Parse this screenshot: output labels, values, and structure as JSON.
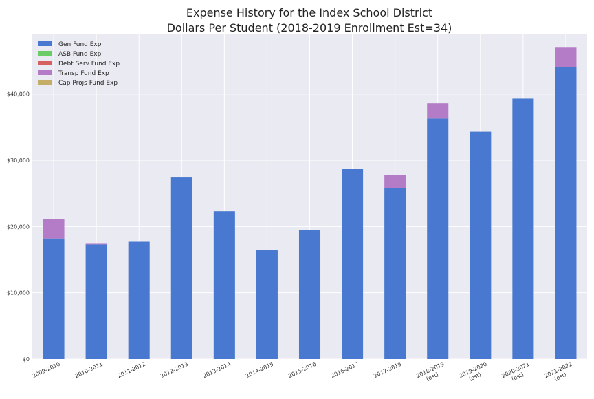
{
  "chart_data": {
    "type": "bar",
    "stacked": true,
    "title": "Expense History for the Index School District",
    "subtitle": "Dollars Per Student (2018-2019 Enrollment Est=34)",
    "xlabel": "",
    "ylabel": "",
    "categories": [
      [
        "2009-2010"
      ],
      [
        "2010-2011"
      ],
      [
        "2011-2012"
      ],
      [
        "2012-2013"
      ],
      [
        "2013-2014"
      ],
      [
        "2014-2015"
      ],
      [
        "2015-2016"
      ],
      [
        "2016-2017"
      ],
      [
        "2017-2018"
      ],
      [
        "2018-2019",
        "(est)"
      ],
      [
        "2019-2020",
        "(est)"
      ],
      [
        "2020-2021",
        "(est)"
      ],
      [
        "2021-2022",
        "(est)"
      ]
    ],
    "ylim": [
      0,
      49000
    ],
    "yticks": [
      0,
      10000,
      20000,
      30000,
      40000
    ],
    "ytick_labels": [
      "$0",
      "$10,000",
      "$20,000",
      "$30,000",
      "$40,000"
    ],
    "grid": true,
    "legend_position": "top-left",
    "series": [
      {
        "name": "Gen Fund Exp",
        "color": "#4878cf",
        "values": [
          18200,
          17300,
          17700,
          27400,
          22300,
          16400,
          19500,
          28700,
          25800,
          36300,
          34300,
          39300,
          44100
        ]
      },
      {
        "name": "ASB Fund Exp",
        "color": "#6acc65",
        "values": [
          0,
          0,
          0,
          0,
          0,
          0,
          0,
          0,
          0,
          0,
          0,
          0,
          0
        ]
      },
      {
        "name": "Debt Serv Fund Exp",
        "color": "#d65f5f",
        "values": [
          0,
          0,
          0,
          0,
          0,
          0,
          0,
          0,
          0,
          0,
          0,
          0,
          0
        ]
      },
      {
        "name": "Transp Fund Exp",
        "color": "#b47cc7",
        "values": [
          2900,
          200,
          0,
          0,
          0,
          0,
          0,
          0,
          2000,
          2300,
          0,
          0,
          2900
        ]
      },
      {
        "name": "Cap Projs Fund Exp",
        "color": "#c4ad66",
        "values": [
          0,
          0,
          0,
          0,
          0,
          0,
          0,
          0,
          0,
          0,
          0,
          0,
          0
        ]
      }
    ],
    "colors": {
      "plot_background": "#eaeaf2",
      "grid": "#ffffff"
    }
  }
}
